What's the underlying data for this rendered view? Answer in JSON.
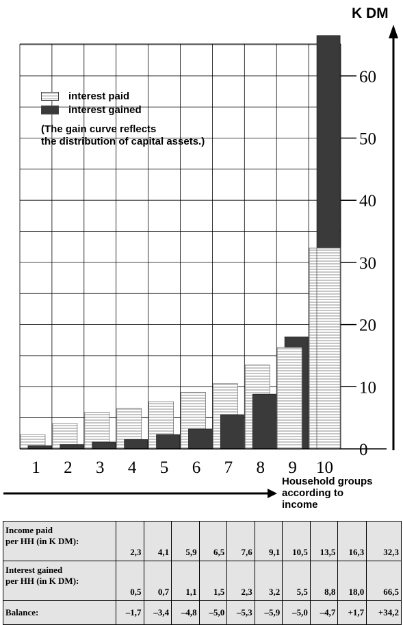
{
  "chart_data": {
    "type": "bar",
    "unit_label": "K DM",
    "categories": [
      "1",
      "2",
      "3",
      "4",
      "5",
      "6",
      "7",
      "8",
      "9",
      "10"
    ],
    "series": [
      {
        "name": "interest paid",
        "values": [
          2.3,
          4.1,
          5.9,
          6.5,
          7.6,
          9.1,
          10.5,
          13.5,
          16.3,
          32.3
        ],
        "color": "#d0d0d0"
      },
      {
        "name": "interest gained",
        "values": [
          0.5,
          0.7,
          1.1,
          1.5,
          2.3,
          3.2,
          5.5,
          8.8,
          18.0,
          66.5
        ],
        "color": "#3a3a3a"
      }
    ],
    "y_ticks": [
      "0",
      "10",
      "20",
      "30",
      "40",
      "50",
      "60"
    ],
    "ylim": [
      0,
      70
    ],
    "annotation": "(The gain curve reflects the distribution of capital assets.)",
    "xlabel": "Household groups according to income",
    "grid": true,
    "legend_position": "top-left"
  },
  "legend": {
    "paid": "interest paid",
    "gained": "interest gained",
    "note_line1": "(The gain curve reflects",
    "note_line2": "the distribution of capital assets.)"
  },
  "xaxis": {
    "title_line1": "Household groups",
    "title_line2": "according to",
    "title_line3": "income"
  },
  "table": {
    "rows": [
      {
        "label_line1": "Income paid",
        "label_line2": "per HH (in K DM):",
        "values": [
          "2,3",
          "4,1",
          "5,9",
          "6,5",
          "7,6",
          "9,1",
          "10,5",
          "13,5",
          "16,3",
          "32,3"
        ]
      },
      {
        "label_line1": "Interest gained",
        "label_line2": "per HH (in K DM):",
        "values": [
          "0,5",
          "0,7",
          "1,1",
          "1,5",
          "2,3",
          "3,2",
          "5,5",
          "8,8",
          "18,0",
          "66,5"
        ]
      },
      {
        "label_line1": "Balance:",
        "label_line2": "",
        "values": [
          "–1,7",
          "–3,4",
          "–4,8",
          "–5,0",
          "–5,3",
          "–5,9",
          "–5,0",
          "–4,7",
          "+1,7",
          "+34,2"
        ]
      }
    ]
  }
}
